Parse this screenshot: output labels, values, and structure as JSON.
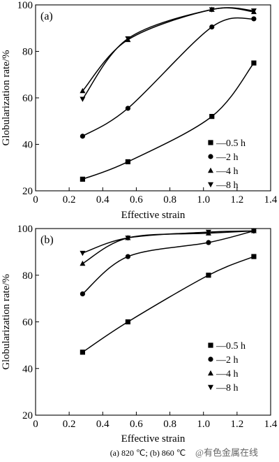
{
  "caption": "(a) 820 ℃; (b) 860 ℃",
  "watermark": "@有色金属在线",
  "chart_data": [
    {
      "panel_label": "(a)",
      "type": "line",
      "xlabel": "Effective strain",
      "ylabel": "Globularization rate/%",
      "xlim": [
        0,
        1.4
      ],
      "ylim": [
        20,
        100
      ],
      "xticks": [
        "0",
        "0.2",
        "0.4",
        "0.6",
        "0.8",
        "1.0",
        "1.2",
        "1.4"
      ],
      "yticks": [
        "20",
        "40",
        "60",
        "80",
        "100"
      ],
      "legend_position": "bottom-right",
      "series": [
        {
          "name": "0.5 h",
          "marker": "square",
          "points": [
            [
              0.28,
              25
            ],
            [
              0.55,
              32.5
            ],
            [
              1.05,
              52
            ],
            [
              1.3,
              75
            ]
          ]
        },
        {
          "name": "2 h",
          "marker": "circle",
          "points": [
            [
              0.28,
              43.5
            ],
            [
              0.55,
              55.5
            ],
            [
              1.05,
              90.5
            ],
            [
              1.3,
              94
            ]
          ]
        },
        {
          "name": "4 h",
          "marker": "triangle-up",
          "points": [
            [
              0.28,
              63
            ],
            [
              0.55,
              85
            ],
            [
              1.05,
              98
            ],
            [
              1.3,
              97
            ]
          ]
        },
        {
          "name": "8 h",
          "marker": "triangle-down",
          "points": [
            [
              0.28,
              59.5
            ],
            [
              0.55,
              85.5
            ],
            [
              1.05,
              98
            ],
            [
              1.3,
              97.5
            ]
          ]
        }
      ]
    },
    {
      "panel_label": "(b)",
      "type": "line",
      "xlabel": "Effective strain",
      "ylabel": "Globularization rate/%",
      "xlim": [
        0,
        1.4
      ],
      "ylim": [
        20,
        100
      ],
      "xticks": [
        "0",
        "0.2",
        "0.4",
        "0.6",
        "0.8",
        "1.0",
        "1.2",
        "1.4"
      ],
      "yticks": [
        "20",
        "40",
        "60",
        "80",
        "100"
      ],
      "legend_position": "bottom-right",
      "series": [
        {
          "name": "0.5 h",
          "marker": "square",
          "points": [
            [
              0.28,
              47
            ],
            [
              0.55,
              60
            ],
            [
              1.03,
              80
            ],
            [
              1.3,
              88
            ]
          ]
        },
        {
          "name": "2 h",
          "marker": "circle",
          "points": [
            [
              0.28,
              72
            ],
            [
              0.55,
              88
            ],
            [
              1.03,
              94
            ],
            [
              1.3,
              99
            ]
          ]
        },
        {
          "name": "4 h",
          "marker": "triangle-up",
          "points": [
            [
              0.28,
              85
            ],
            [
              0.55,
              96
            ],
            [
              1.03,
              98
            ],
            [
              1.3,
              99
            ]
          ]
        },
        {
          "name": "8 h",
          "marker": "triangle-down",
          "points": [
            [
              0.28,
              89.5
            ],
            [
              0.55,
              96
            ],
            [
              1.03,
              98.5
            ],
            [
              1.3,
              99
            ]
          ]
        }
      ]
    }
  ]
}
